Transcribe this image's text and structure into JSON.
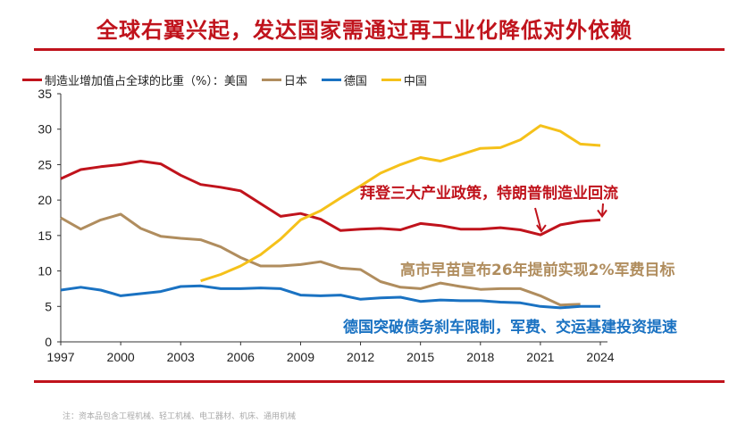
{
  "title": "全球右翼兴起，发达国家需通过再工业化降低对外依赖",
  "note": "注：资本品包含工程机械、轻工机械、电工器材、机床、通用机械",
  "chart_data": {
    "type": "line",
    "legend_prefix": "制造业增加值占全球的比重（%）：",
    "legend_placement": "top-left",
    "x": [
      1997,
      1998,
      1999,
      2000,
      2001,
      2002,
      2003,
      2004,
      2005,
      2006,
      2007,
      2008,
      2009,
      2010,
      2011,
      2012,
      2013,
      2014,
      2015,
      2016,
      2017,
      2018,
      2019,
      2020,
      2021,
      2022,
      2023,
      2024
    ],
    "xticks": [
      "1997",
      "2000",
      "2003",
      "2006",
      "2009",
      "2012",
      "2015",
      "2018",
      "2021",
      "2024"
    ],
    "yticks": [
      "0",
      "5",
      "10",
      "15",
      "20",
      "25",
      "30",
      "35"
    ],
    "ylim": [
      0,
      35
    ],
    "grid": false,
    "series": [
      {
        "name": "美国",
        "color": "#c0131c",
        "values": [
          23,
          24.3,
          24.7,
          25,
          25.5,
          25.1,
          23.5,
          22.2,
          21.8,
          21.3,
          19.5,
          17.7,
          18.1,
          17.3,
          15.7,
          15.9,
          16,
          15.8,
          16.7,
          16.4,
          15.9,
          15.9,
          16.1,
          15.8,
          15.1,
          16.5,
          17,
          17.2
        ]
      },
      {
        "name": "日本",
        "color": "#b08d5e",
        "values": [
          17.5,
          15.9,
          17.2,
          18,
          16,
          14.9,
          14.6,
          14.4,
          13.4,
          11.9,
          10.7,
          10.7,
          10.9,
          11.3,
          10.4,
          10.2,
          8.5,
          7.7,
          7.5,
          8.3,
          7.8,
          7.4,
          7.5,
          7.5,
          6.5,
          5.2,
          5.3,
          null
        ]
      },
      {
        "name": "德国",
        "color": "#1a72c2",
        "values": [
          7.3,
          7.7,
          7.3,
          6.5,
          6.8,
          7.1,
          7.8,
          7.9,
          7.5,
          7.5,
          7.6,
          7.5,
          6.6,
          6.5,
          6.6,
          6.0,
          6.2,
          6.3,
          5.7,
          5.9,
          5.8,
          5.8,
          5.6,
          5.5,
          5.0,
          4.8,
          5.0,
          5.0
        ]
      },
      {
        "name": "中国",
        "color": "#f5c11a",
        "values": [
          null,
          null,
          null,
          null,
          null,
          null,
          null,
          8.6,
          9.5,
          10.7,
          12.3,
          14.5,
          17.2,
          18.5,
          20.3,
          22,
          23.8,
          25,
          26,
          25.5,
          26.4,
          27.3,
          27.4,
          28.5,
          30.5,
          29.7,
          27.9,
          27.7
        ]
      }
    ],
    "annotations": [
      {
        "text": "拜登三大产业政策，特朗普制造业回流",
        "color": "#c0131c"
      },
      {
        "text": "高市早苗宣布26年提前实现2%军费目标",
        "color": "#b08d5e"
      },
      {
        "text": "德国突破债务刹车限制，军费、交运基建投资提速",
        "color": "#1a72c2"
      }
    ]
  }
}
